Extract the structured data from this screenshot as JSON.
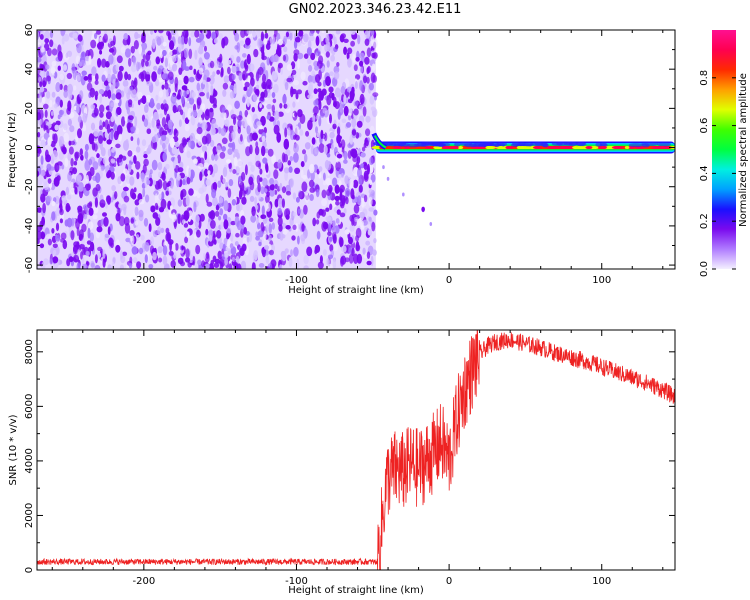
{
  "title": "GN02.2023.346.23.42.E11",
  "colors": {
    "snr_line": "#ee2222",
    "spectrogram_noise": "#7a0aee",
    "colorbar": [
      "#f4f0ff",
      "#b07cff",
      "#7a0aee",
      "#1a10ff",
      "#00a0ff",
      "#00f0e0",
      "#00ff40",
      "#40ff00",
      "#e0ff00",
      "#ffa000",
      "#ff2a00",
      "#ff0050",
      "#ff1090"
    ]
  },
  "chart_data": [
    {
      "type": "heatmap",
      "xlabel": "Height of straight line (km)",
      "ylabel": "Frequency (Hz)",
      "xlim": [
        -270,
        148
      ],
      "ylim": [
        -62,
        60
      ],
      "xticks": [
        -200,
        -100,
        0,
        100
      ],
      "xtick_labels": [
        "-200",
        "-100",
        "0",
        "100"
      ],
      "yticks": [
        -60,
        -40,
        -20,
        0,
        20,
        40,
        60
      ],
      "ytick_labels": [
        "-60",
        "-40",
        "-20",
        "0",
        "20",
        "40",
        "60"
      ],
      "noise_region_x": [
        -270,
        -48
      ],
      "tone_frequency_hz": 0,
      "tone_region_x": [
        -48,
        148
      ],
      "grid": false,
      "colorbar": {
        "label": "Normalized spectral amplitude",
        "range": [
          0,
          1
        ],
        "ticks": [
          0.0,
          0.2,
          0.4,
          0.6,
          0.8
        ],
        "tick_labels": [
          "0.0",
          "0.2",
          "0.4",
          "0.6",
          "0.8"
        ]
      }
    },
    {
      "type": "line",
      "xlabel": "Height of straight line (km)",
      "ylabel": "SNR (10 * v/v)",
      "xlim": [
        -270,
        148
      ],
      "ylim": [
        0,
        8800
      ],
      "xticks": [
        -200,
        -100,
        0,
        100
      ],
      "xtick_labels": [
        "-200",
        "-100",
        "0",
        "100"
      ],
      "yticks": [
        0,
        2000,
        4000,
        6000,
        8000
      ],
      "ytick_labels": [
        "0",
        "2000",
        "4000",
        "6000",
        "8000"
      ],
      "grid": false,
      "series": [
        {
          "x": [
            -270,
            -200,
            -100,
            -47,
            -45,
            -42,
            -40,
            -35,
            -30,
            -25,
            -20,
            -15,
            -10,
            -5,
            0,
            5,
            10,
            15,
            20,
            25,
            30,
            40,
            50,
            60,
            70,
            80,
            90,
            100,
            110,
            120,
            130,
            140,
            148
          ],
          "y": [
            300,
            300,
            300,
            300,
            1200,
            2800,
            3400,
            3700,
            3600,
            3900,
            3700,
            4000,
            4300,
            4700,
            4000,
            5500,
            6600,
            7300,
            7900,
            8200,
            8350,
            8450,
            8300,
            8150,
            7950,
            7800,
            7650,
            7450,
            7250,
            7050,
            6850,
            6600,
            6350
          ]
        }
      ]
    }
  ]
}
